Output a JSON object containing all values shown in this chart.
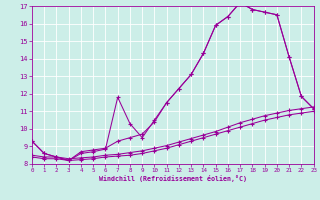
{
  "bg_color": "#cceee8",
  "line_color": "#990099",
  "xlim": [
    0,
    23
  ],
  "ylim": [
    8,
    17
  ],
  "xticks": [
    0,
    1,
    2,
    3,
    4,
    5,
    6,
    7,
    8,
    9,
    10,
    11,
    12,
    13,
    14,
    15,
    16,
    17,
    18,
    19,
    20,
    21,
    22,
    23
  ],
  "yticks": [
    8,
    9,
    10,
    11,
    12,
    13,
    14,
    15,
    16,
    17
  ],
  "xlabel": "Windchill (Refroidissement éolien,°C)",
  "curve1_x": [
    0,
    1,
    2,
    3,
    4,
    5,
    6,
    7,
    8,
    9,
    10,
    11,
    12,
    13,
    14,
    15,
    16,
    17,
    18,
    19,
    20,
    21,
    22,
    23
  ],
  "curve1_y": [
    9.3,
    8.6,
    8.4,
    8.2,
    8.7,
    8.8,
    8.9,
    9.3,
    9.5,
    9.7,
    10.4,
    11.5,
    12.3,
    13.1,
    14.3,
    15.9,
    16.4,
    17.2,
    16.8,
    16.65,
    16.5,
    14.1,
    11.85,
    11.15
  ],
  "curve2_x": [
    0,
    1,
    2,
    3,
    4,
    5,
    6,
    7,
    8,
    9,
    10,
    11,
    12,
    13,
    14,
    15,
    16,
    17,
    18,
    19,
    20,
    21,
    22,
    23
  ],
  "curve2_y": [
    9.3,
    8.6,
    8.4,
    8.2,
    8.6,
    8.7,
    8.85,
    11.8,
    10.3,
    9.5,
    10.5,
    11.5,
    12.3,
    13.1,
    14.3,
    15.9,
    16.4,
    17.2,
    16.8,
    16.65,
    16.5,
    14.1,
    11.85,
    11.15
  ],
  "curve3_x": [
    0,
    1,
    2,
    3,
    4,
    5,
    6,
    7,
    8,
    9,
    10,
    11,
    12,
    13,
    14,
    15,
    16,
    17,
    18,
    19,
    20,
    21,
    22,
    23
  ],
  "curve3_y": [
    8.5,
    8.4,
    8.4,
    8.3,
    8.35,
    8.4,
    8.5,
    8.55,
    8.65,
    8.75,
    8.9,
    9.05,
    9.25,
    9.45,
    9.65,
    9.85,
    10.1,
    10.35,
    10.55,
    10.75,
    10.9,
    11.05,
    11.15,
    11.25
  ],
  "curve4_x": [
    0,
    1,
    2,
    3,
    4,
    5,
    6,
    7,
    8,
    9,
    10,
    11,
    12,
    13,
    14,
    15,
    16,
    17,
    18,
    19,
    20,
    21,
    22,
    23
  ],
  "curve4_y": [
    8.4,
    8.3,
    8.3,
    8.2,
    8.25,
    8.3,
    8.4,
    8.45,
    8.5,
    8.6,
    8.75,
    8.9,
    9.1,
    9.3,
    9.5,
    9.7,
    9.9,
    10.1,
    10.3,
    10.5,
    10.65,
    10.8,
    10.9,
    11.0
  ]
}
